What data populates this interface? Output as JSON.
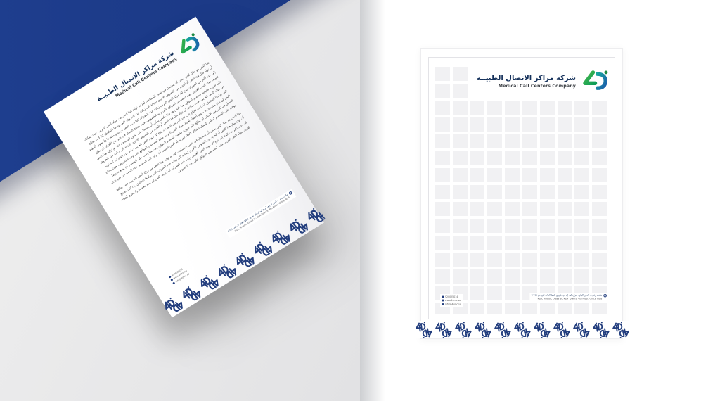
{
  "brand": {
    "logo_mark": "4d-monogram",
    "name_ar": "شركة مراكز الاتصال الطبيــة",
    "name_en": "Medical Call Centers Company",
    "colors": {
      "logo_green": "#2fae4e",
      "logo_teal": "#16a59c",
      "logo_blue": "#1b5dac",
      "pattern_navy": "#233e7e",
      "panel_blue": "#1d3c8b"
    }
  },
  "letter": {
    "paragraphs": [
      "هذا النص هو مثال لنص يمكن أن يستبدل في نفس المساحة، لقد تم توليد هذا النص من مولد النص العربى، حيث يمكنك أن تولد مثل هذا النص أو العديد من النصوص الأخرى إضافة إلى زيادة عدد الحروف التى يولدها التطبيق. إذا كنت تحتاج إلى عدد أكبر من الفقرات يتيح لك مولد النص العربى زيادة عدد الفقرات كما تريد، النص لن يبدو مقسما ولا يحوي أخطاء لغوية، مولد النص العربى مفيد لمصممي المواقع على وجه الخصوص، حيث يحتاج العميل فى كثير من الأحيان أن يطلع على صورة حقيقية لتصميم الموقع. هذا النص هو مثال لنص يمكن أن يستبدل في نفس المساحة، لقد تم توليد هذا النص من مولد النص العربى، حيث يمكنك أن تولد مثل هذا النص أو العديد من النصوص الأخرى إضافة إلى زيادة عدد الحروف التى يولدها التطبيق. إذا كنت تحتاج إلى عدد أكبر من الفقرات يتيح لك مولد النص العربى زيادة عدد الفقرات كما تريد، النص لن يبدو مقسما ولا يحوي أخطاء لغوية. مولد النص العربى مفيد لمصممي المواقع على وجه الخصوص، حيث يحتاج العميل فى كثير من الأحيان أن يطلع على صورة حقيقية لتصميم الموقع، ومن هنا وجب على المصمم أن يضع نصوصا مؤقتة على التصميم ليظهر للعميل الشكل كاملاً، دور مولد النص العربى أن يوفر على المصمم عناء البحث عن نص بديل.",
      "هذا النص هو مثال لنص يمكن أن يستبدل في نفس المساحة، لقد تم توليد هذا النص من مولد النص العربى، حيث يمكنك أن تولد مثل هذا النص أو العديد من النصوص الأخرى إضافة إلى زيادة عدد الحروف التى يولدها التطبيق. إذا كنت تحتاج إلى عدد أكبر من الفقرات يتيح لك مولد النص العربى زيادة عدد الفقرات كما تريد، النص لن يبدو مقسما ولا يحوي أخطاء لغوية، مولد النص العربى مفيد لمصممي المواقع على وجه الخصوص."
    ]
  },
  "footer": {
    "contacts": [
      {
        "icon": "phone-icon",
        "text": "920025014"
      },
      {
        "icon": "globe-icon",
        "text": "www.4dmc.sa"
      },
      {
        "icon": "email-icon",
        "text": "info@4dmc.sa"
      }
    ],
    "address_ar": "مكتب رقم ٨، الدور الرابع، أبراج كيه إل إم، طريق العليا العام، الرياض ١٢٢٤٤",
    "address_en": "KSA, Riyadh, Olaya St, KLM Towers, 4th Floor, Office No 8"
  },
  "grid": {
    "cols": 10,
    "rows": 15
  },
  "pattern": {
    "flat_units": 11,
    "tilted_units": 9
  }
}
